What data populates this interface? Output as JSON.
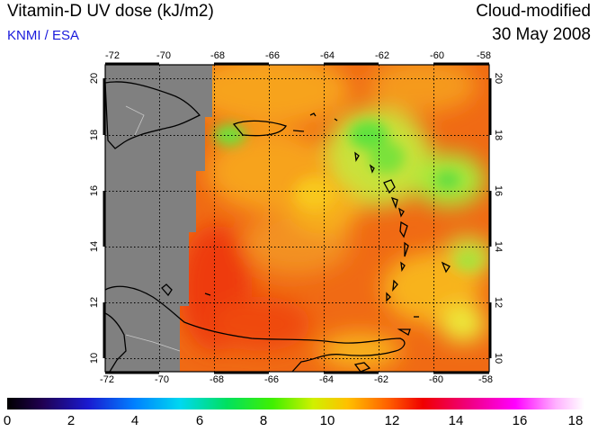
{
  "header": {
    "title": "Vitamin-D UV dose (kJ/m2)",
    "source": "KNMI / ESA",
    "mode": "Cloud-modified",
    "date": "30 May 2008"
  },
  "map": {
    "lon_ticks": [
      "-72",
      "-70",
      "-68",
      "-66",
      "-64",
      "-62",
      "-60",
      "-58"
    ],
    "lat_ticks": [
      "20",
      "18",
      "16",
      "14",
      "12",
      "10"
    ],
    "lon_range": [
      -72,
      -58
    ],
    "lat_range": [
      9.5,
      20.5
    ],
    "no_data_color": "#808080",
    "grid": "dotted"
  },
  "colorbar": {
    "min": 0,
    "max": 18,
    "labels": [
      "0",
      "2",
      "4",
      "6",
      "8",
      "10",
      "12",
      "14",
      "16",
      "18"
    ]
  }
}
